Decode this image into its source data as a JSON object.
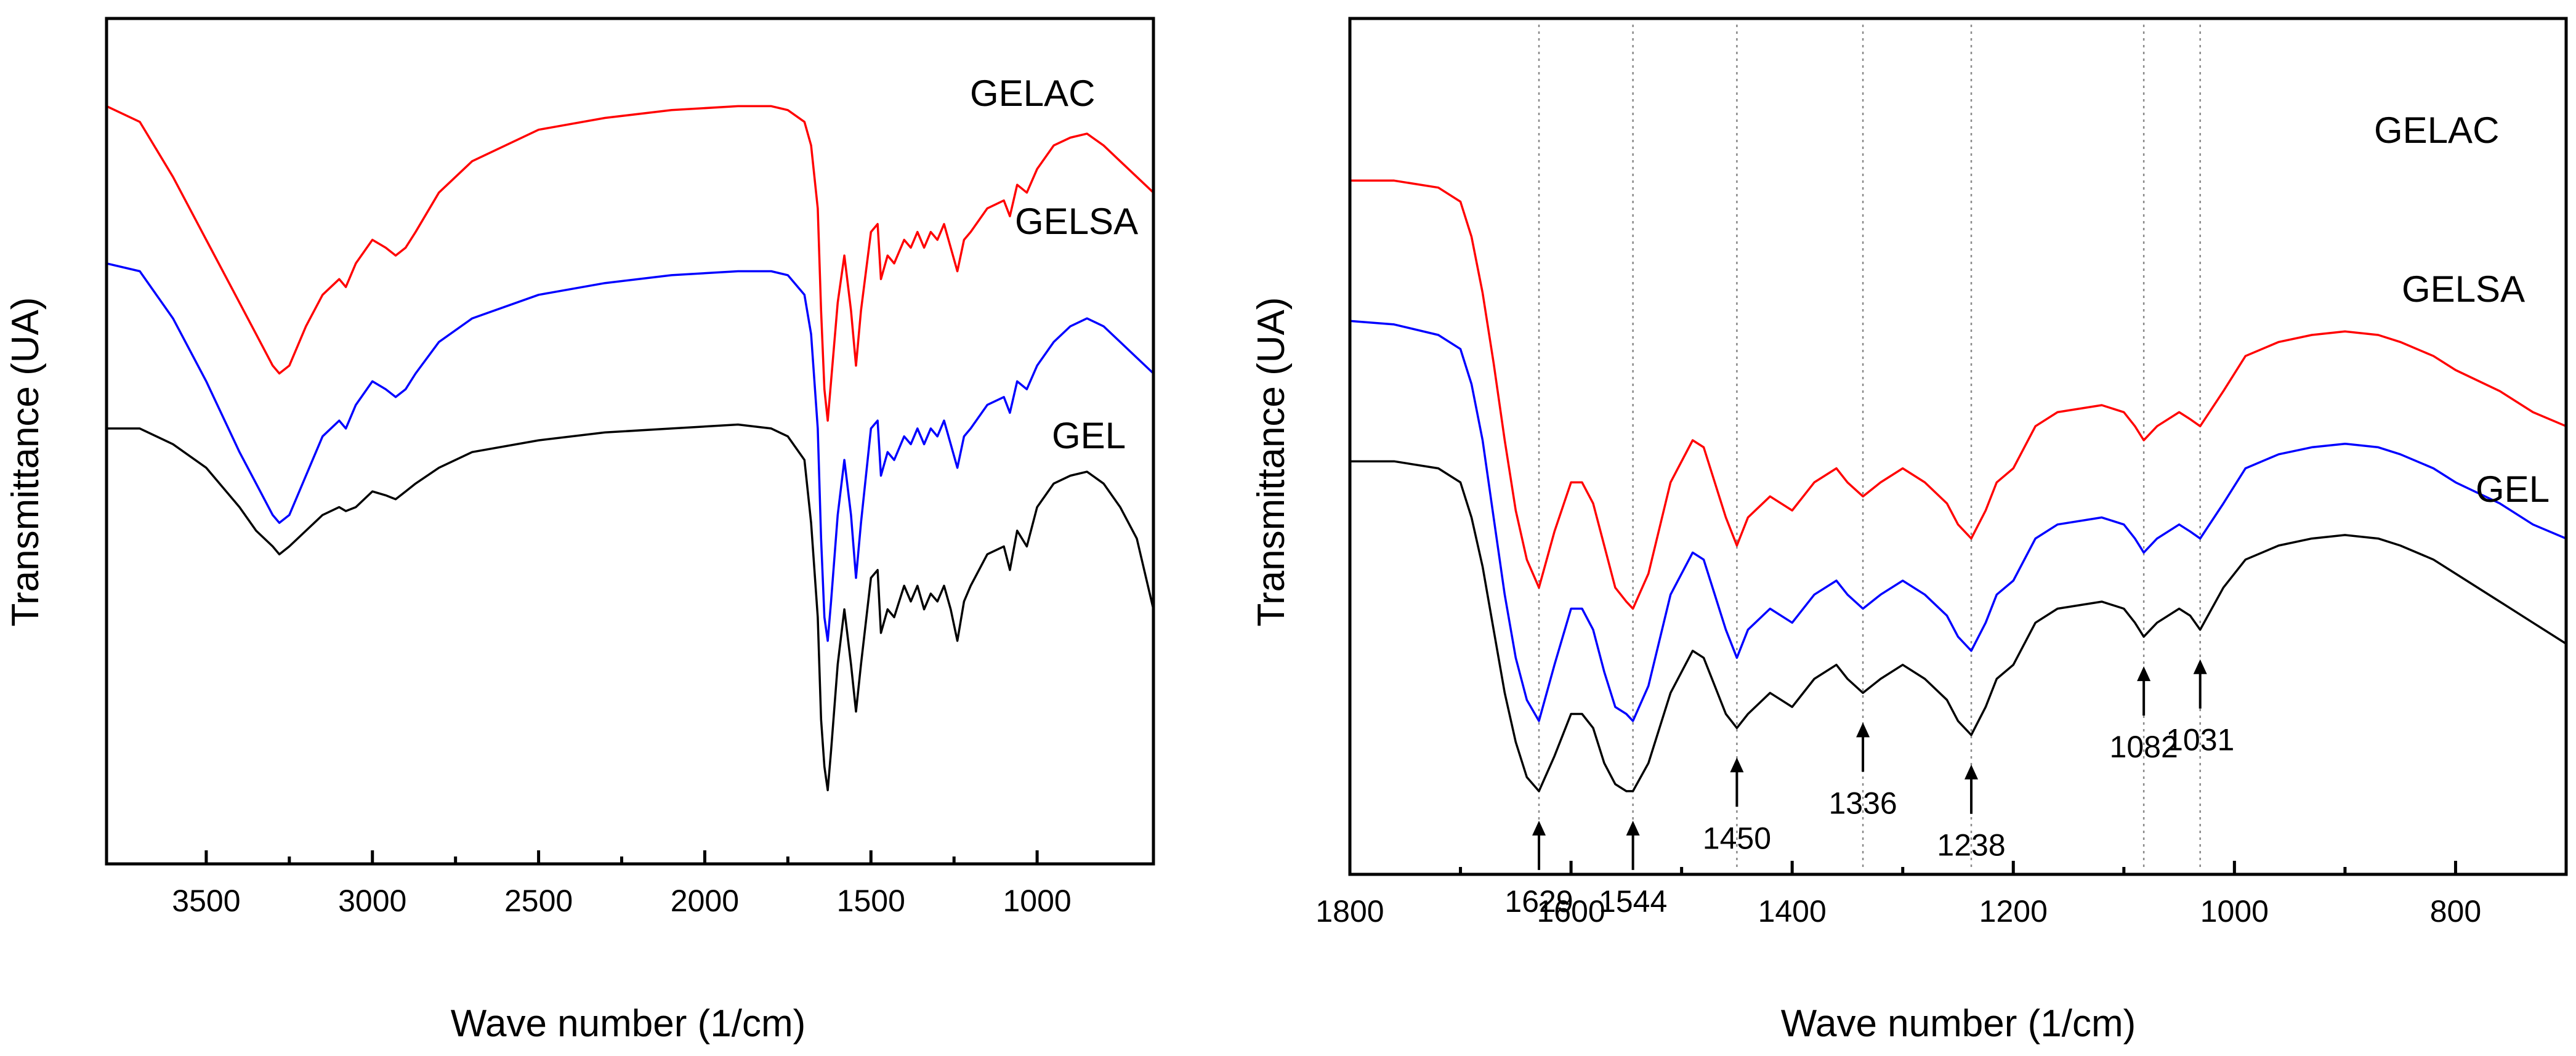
{
  "chart_data": [
    {
      "type": "line",
      "panel": "left",
      "title": "",
      "xlabel": "Wave number (1/cm)",
      "ylabel": "Transmittance (UA)",
      "xlim": [
        3800,
        650
      ],
      "ylim": [
        0,
        100
      ],
      "xticks": [
        3500,
        3000,
        2500,
        2000,
        1500,
        1000
      ],
      "x_tick_labels": [
        "3500",
        "3000",
        "2500",
        "2000",
        "1500",
        "1000"
      ],
      "y_tick_labels_shown": false,
      "series": [
        {
          "name": "GELAC",
          "color": "#ff0000",
          "x": [
            3800,
            3700,
            3600,
            3500,
            3400,
            3350,
            3300,
            3280,
            3250,
            3200,
            3150,
            3100,
            3080,
            3050,
            3000,
            2960,
            2930,
            2900,
            2870,
            2800,
            2700,
            2500,
            2300,
            2100,
            1900,
            1800,
            1750,
            1700,
            1680,
            1660,
            1650,
            1640,
            1630,
            1620,
            1600,
            1580,
            1560,
            1545,
            1530,
            1500,
            1480,
            1470,
            1450,
            1430,
            1400,
            1380,
            1360,
            1340,
            1320,
            1300,
            1280,
            1260,
            1240,
            1220,
            1200,
            1150,
            1100,
            1082,
            1060,
            1031,
            1000,
            950,
            900,
            850,
            800,
            750,
            700,
            650
          ],
          "y": [
            91,
            89,
            82,
            74,
            66,
            62,
            58,
            57,
            58,
            63,
            67,
            69,
            68,
            71,
            74,
            73,
            72,
            73,
            75,
            80,
            84,
            88,
            89.5,
            90.5,
            91,
            91,
            90.5,
            89,
            86,
            78,
            65,
            55,
            51,
            56,
            66,
            72,
            65,
            58,
            65,
            75,
            76,
            69,
            72,
            71,
            74,
            73,
            75,
            73,
            75,
            74,
            76,
            73,
            70,
            74,
            75,
            78,
            79,
            77,
            81,
            80,
            83,
            86,
            87,
            87.5,
            86,
            84,
            82,
            80
          ]
        },
        {
          "name": "GELSA",
          "color": "#0000ff",
          "x": [
            3800,
            3700,
            3600,
            3500,
            3400,
            3350,
            3300,
            3280,
            3250,
            3200,
            3150,
            3100,
            3080,
            3050,
            3000,
            2960,
            2930,
            2900,
            2870,
            2800,
            2700,
            2500,
            2300,
            2100,
            1900,
            1800,
            1750,
            1700,
            1680,
            1660,
            1650,
            1640,
            1630,
            1620,
            1600,
            1580,
            1560,
            1545,
            1530,
            1500,
            1480,
            1470,
            1450,
            1430,
            1400,
            1380,
            1360,
            1340,
            1320,
            1300,
            1280,
            1260,
            1240,
            1220,
            1200,
            1150,
            1100,
            1082,
            1060,
            1031,
            1000,
            950,
            900,
            850,
            800,
            750,
            700,
            650
          ],
          "y": [
            71,
            70,
            64,
            56,
            47,
            43,
            39,
            38,
            39,
            44,
            49,
            51,
            50,
            53,
            56,
            55,
            54,
            55,
            57,
            61,
            64,
            67,
            68.5,
            69.5,
            70,
            70,
            69.5,
            67,
            62,
            50,
            36,
            26,
            23,
            28,
            39,
            46,
            39,
            31,
            38,
            50,
            51,
            44,
            47,
            46,
            49,
            48,
            50,
            48,
            50,
            49,
            51,
            48,
            45,
            49,
            50,
            53,
            54,
            52,
            56,
            55,
            58,
            61,
            63,
            64,
            63,
            61,
            59,
            57
          ]
        },
        {
          "name": "GEL",
          "color": "#000000",
          "x": [
            3800,
            3700,
            3600,
            3500,
            3400,
            3350,
            3300,
            3280,
            3250,
            3200,
            3150,
            3100,
            3080,
            3050,
            3000,
            2960,
            2930,
            2900,
            2870,
            2800,
            2700,
            2500,
            2300,
            2100,
            1900,
            1800,
            1750,
            1700,
            1680,
            1660,
            1650,
            1640,
            1630,
            1620,
            1600,
            1580,
            1560,
            1545,
            1530,
            1500,
            1480,
            1470,
            1450,
            1430,
            1400,
            1380,
            1360,
            1340,
            1320,
            1300,
            1280,
            1260,
            1240,
            1220,
            1200,
            1150,
            1100,
            1082,
            1060,
            1031,
            1000,
            950,
            900,
            850,
            800,
            750,
            700,
            650
          ],
          "y": [
            50,
            50,
            48,
            45,
            40,
            37,
            35,
            34,
            35,
            37,
            39,
            40,
            39.5,
            40,
            42,
            41.5,
            41,
            42,
            43,
            45,
            47,
            48.5,
            49.5,
            50,
            50.5,
            50,
            49,
            46,
            38,
            26,
            13,
            7,
            4,
            9,
            20,
            27,
            20,
            14,
            20,
            31,
            32,
            24,
            27,
            26,
            30,
            28,
            30,
            27,
            29,
            28,
            30,
            27,
            23,
            28,
            30,
            34,
            35,
            32,
            37,
            35,
            40,
            43,
            44,
            44.5,
            43,
            40,
            36,
            27
          ]
        }
      ]
    },
    {
      "type": "line",
      "panel": "right",
      "title": "",
      "xlabel": "Wave number (1/cm)",
      "ylabel": "Transmittance (UA)",
      "xlim": [
        1800,
        700
      ],
      "ylim": [
        0,
        100
      ],
      "xticks": [
        1800,
        1600,
        1400,
        1200,
        1000,
        800
      ],
      "x_tick_labels": [
        "1800",
        "1600",
        "1400",
        "1200",
        "1000",
        "800"
      ],
      "y_tick_labels_shown": false,
      "annotations": [
        {
          "label": "1629",
          "x": 1629
        },
        {
          "label": "1544",
          "x": 1544
        },
        {
          "label": "1450",
          "x": 1450
        },
        {
          "label": "1336",
          "x": 1336
        },
        {
          "label": "1238",
          "x": 1238
        },
        {
          "label": "1082",
          "x": 1082
        },
        {
          "label": "1031",
          "x": 1031
        }
      ],
      "series": [
        {
          "name": "GELAC",
          "color": "#ff0000",
          "x": [
            1800,
            1760,
            1720,
            1700,
            1690,
            1680,
            1670,
            1660,
            1650,
            1640,
            1629,
            1615,
            1600,
            1590,
            1580,
            1570,
            1560,
            1550,
            1544,
            1530,
            1510,
            1490,
            1480,
            1470,
            1460,
            1450,
            1440,
            1420,
            1400,
            1380,
            1360,
            1350,
            1336,
            1320,
            1300,
            1280,
            1260,
            1250,
            1238,
            1225,
            1215,
            1200,
            1180,
            1160,
            1120,
            1100,
            1090,
            1082,
            1070,
            1050,
            1040,
            1031,
            1010,
            990,
            960,
            930,
            900,
            870,
            850,
            820,
            800,
            760,
            730,
            700
          ],
          "y": [
            83,
            83,
            82,
            80,
            75,
            67,
            57,
            46,
            36,
            29,
            25,
            33,
            40,
            40,
            37,
            31,
            25,
            23,
            22,
            27,
            40,
            46,
            45,
            40,
            35,
            31,
            35,
            38,
            36,
            40,
            42,
            40,
            38,
            40,
            42,
            40,
            37,
            34,
            32,
            36,
            40,
            42,
            48,
            50,
            51,
            50,
            48,
            46,
            48,
            50,
            49,
            48,
            53,
            58,
            60,
            61,
            61.5,
            61,
            60,
            58,
            56,
            53,
            50,
            48
          ]
        },
        {
          "name": "GELSA",
          "color": "#0000ff",
          "x": [
            1800,
            1760,
            1720,
            1700,
            1690,
            1680,
            1670,
            1660,
            1650,
            1640,
            1629,
            1615,
            1600,
            1590,
            1580,
            1570,
            1560,
            1550,
            1544,
            1530,
            1510,
            1490,
            1480,
            1470,
            1460,
            1450,
            1440,
            1420,
            1400,
            1380,
            1360,
            1350,
            1336,
            1320,
            1300,
            1280,
            1260,
            1250,
            1238,
            1225,
            1215,
            1200,
            1180,
            1160,
            1120,
            1100,
            1090,
            1082,
            1070,
            1050,
            1040,
            1031,
            1010,
            990,
            960,
            930,
            900,
            870,
            850,
            820,
            800,
            760,
            730,
            700
          ],
          "y": [
            63,
            62.5,
            61,
            59,
            54,
            46,
            35,
            24,
            15,
            9,
            6,
            14,
            22,
            22,
            19,
            13,
            8,
            7,
            6,
            11,
            24,
            30,
            29,
            24,
            19,
            15,
            19,
            22,
            20,
            24,
            26,
            24,
            22,
            24,
            26,
            24,
            21,
            18,
            16,
            20,
            24,
            26,
            32,
            34,
            35,
            34,
            32,
            30,
            32,
            34,
            33,
            32,
            37,
            42,
            44,
            45,
            45.5,
            45,
            44,
            42,
            40,
            37,
            34,
            32
          ]
        },
        {
          "name": "GEL",
          "color": "#000000",
          "x": [
            1800,
            1760,
            1720,
            1700,
            1690,
            1680,
            1670,
            1660,
            1650,
            1640,
            1629,
            1615,
            1600,
            1590,
            1580,
            1570,
            1560,
            1550,
            1544,
            1530,
            1510,
            1490,
            1480,
            1470,
            1460,
            1450,
            1440,
            1420,
            1400,
            1380,
            1360,
            1350,
            1336,
            1320,
            1300,
            1280,
            1260,
            1250,
            1238,
            1225,
            1215,
            1200,
            1180,
            1160,
            1120,
            1100,
            1090,
            1082,
            1070,
            1050,
            1040,
            1031,
            1010,
            990,
            960,
            930,
            900,
            870,
            850,
            820,
            800,
            760,
            730,
            700
          ],
          "y": [
            43,
            43,
            42,
            40,
            35,
            28,
            19,
            10,
            3,
            -2,
            -4,
            1,
            7,
            7,
            5,
            0,
            -3,
            -4,
            -4,
            0,
            10,
            16,
            15,
            11,
            7,
            5,
            7,
            10,
            8,
            12,
            14,
            12,
            10,
            12,
            14,
            12,
            9,
            6,
            4,
            8,
            12,
            14,
            20,
            22,
            23,
            22,
            20,
            18,
            20,
            22,
            21,
            19,
            25,
            29,
            31,
            32,
            32.5,
            32,
            31,
            29,
            27,
            23,
            20,
            17
          ]
        }
      ]
    }
  ]
}
